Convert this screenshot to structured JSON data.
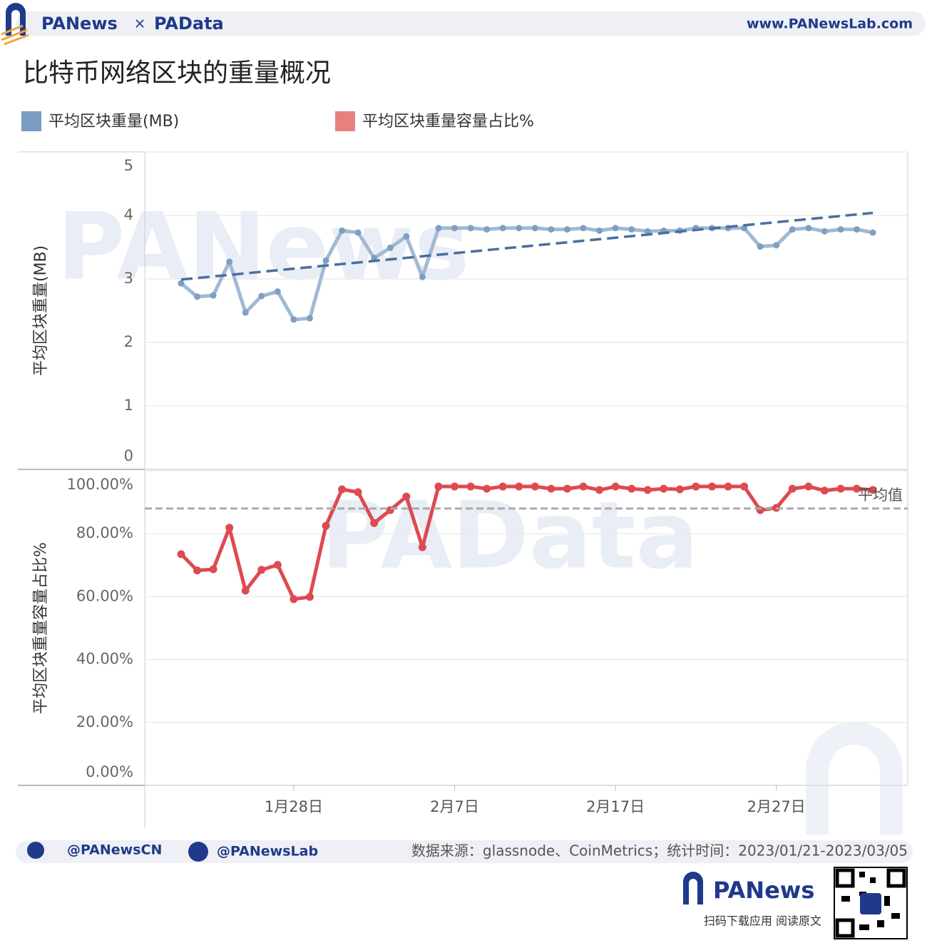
{
  "header": {
    "brand_left": "PANews",
    "times": "×",
    "brand_right": "PAData",
    "url": "www.PANewsLab.com"
  },
  "title": "比特币网络区块的重量概况",
  "watermarks": [
    "PANews",
    "PAData"
  ],
  "chart_data": [
    {
      "type": "line",
      "y_label": "平均区块重量(MB)",
      "series": [
        {
          "name": "平均区块重量(MB)",
          "color": "#7f9fc2",
          "values": [
            2.93,
            2.72,
            2.74,
            3.27,
            2.47,
            2.73,
            2.8,
            2.36,
            2.38,
            3.29,
            3.76,
            3.73,
            3.33,
            3.49,
            3.67,
            3.03,
            3.8,
            3.8,
            3.8,
            3.78,
            3.8,
            3.8,
            3.8,
            3.78,
            3.78,
            3.8,
            3.76,
            3.8,
            3.78,
            3.75,
            3.76,
            3.76,
            3.8,
            3.8,
            3.8,
            3.8,
            3.51,
            3.53,
            3.78,
            3.8,
            3.75,
            3.78,
            3.78,
            3.73
          ]
        }
      ],
      "trend": {
        "color": "#4a6e9e",
        "values": [
          2.99,
          4.04
        ]
      },
      "ylim": [
        0,
        5
      ],
      "yticks": [
        0,
        1,
        2,
        3,
        4,
        5
      ],
      "grid": true
    },
    {
      "type": "line",
      "y_label": "平均区块重量容量占比%",
      "categories": [
        null,
        null,
        null,
        null,
        null,
        null,
        null,
        "1月28日",
        null,
        null,
        null,
        null,
        null,
        null,
        null,
        null,
        null,
        "2月7日",
        null,
        null,
        null,
        null,
        null,
        null,
        null,
        null,
        null,
        "2月17日",
        null,
        null,
        null,
        null,
        null,
        null,
        null,
        null,
        null,
        "2月27日",
        null,
        null,
        null,
        null,
        null,
        null
      ],
      "series": [
        {
          "name": "平均区块重量容量占比%",
          "color": "#dd4a50",
          "values": [
            73.5,
            68.3,
            68.7,
            81.9,
            61.9,
            68.5,
            70.1,
            59.2,
            59.9,
            82.5,
            94.1,
            93.2,
            83.4,
            87.5,
            91.8,
            75.7,
            95.0,
            95.0,
            95.0,
            94.3,
            95.0,
            95.0,
            95.0,
            94.3,
            94.3,
            95.0,
            93.9,
            95.0,
            94.3,
            93.9,
            94.3,
            94.1,
            95.0,
            95.0,
            95.0,
            95.0,
            87.5,
            88.2,
            94.3,
            95.0,
            93.7,
            94.3,
            94.3,
            93.9
          ]
        }
      ],
      "reference_line": {
        "value": 88.0,
        "label": "平均值",
        "color": "#aaaaaa"
      },
      "ylim": [
        0,
        100
      ],
      "yticks": [
        {
          "value": 0,
          "label": "0.00%"
        },
        {
          "value": 20,
          "label": "20.00%"
        },
        {
          "value": 40,
          "label": "40.00%"
        },
        {
          "value": 60,
          "label": "60.00%"
        },
        {
          "value": 80,
          "label": "80.00%"
        },
        {
          "value": 100,
          "label": "100.00%"
        }
      ],
      "grid": true
    }
  ],
  "legend_colors": [
    "#7a9cc0",
    "#e88080"
  ],
  "footer": {
    "twitter": "@PANewsCN",
    "facebook": "@PANewsLab",
    "source": "数据来源：glassnode、CoinMetrics；统计时间：2023/01/21-2023/03/05",
    "brand": "PANews",
    "qr_caption": "扫码下载应用  阅读原文"
  }
}
